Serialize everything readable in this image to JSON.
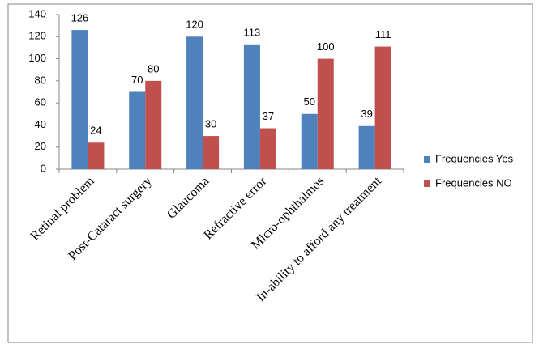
{
  "chart_data": {
    "type": "bar",
    "categories": [
      "Retinal problem",
      "Post-Cataract surgery",
      "Glaucoma",
      "Refractive error",
      "Micro-ophthalmos",
      "In-ability to afford any treatment"
    ],
    "series": [
      {
        "name": "Frequencies Yes",
        "color": "#4f81bd",
        "values": [
          126,
          70,
          120,
          113,
          50,
          39
        ]
      },
      {
        "name": "Frequencies NO",
        "color": "#c0504d",
        "values": [
          24,
          80,
          30,
          37,
          100,
          111
        ]
      }
    ],
    "ylim": [
      0,
      140
    ],
    "yticks": [
      0,
      20,
      40,
      60,
      80,
      100,
      120,
      140
    ],
    "grid": false,
    "legend": "right"
  }
}
